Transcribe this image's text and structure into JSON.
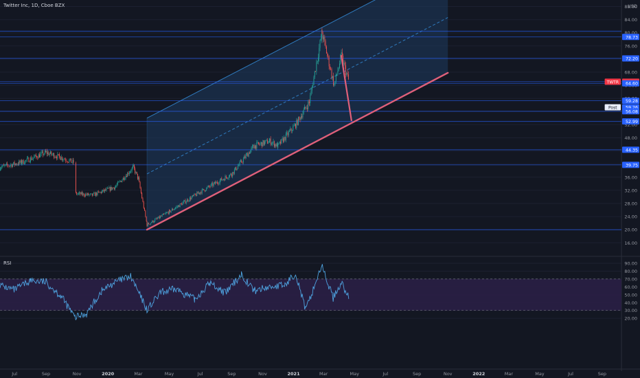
{
  "title": "Twitter Inc, 1D, Cboe BZX",
  "currency": "USD",
  "colors": {
    "background": "#131722",
    "candle_up": "#26a69a",
    "candle_down": "#ef5350",
    "hline": "#2962ff",
    "channel_fill": "#1e3a5f",
    "channel_border": "#2f7bbf",
    "support": "#e0607a",
    "rsi": "#4ea3e0",
    "rsi_band": "#2a1f45",
    "label_blue": "#2962ff",
    "label_red": "#f23645"
  },
  "axis": {
    "price_ticks": [
      "88.00",
      "84.00",
      "80.00",
      "76.00",
      "72.00",
      "68.00",
      "64.00",
      "60.00",
      "56.00",
      "52.00",
      "48.00",
      "44.00",
      "40.00",
      "36.00",
      "32.00",
      "28.00",
      "24.00",
      "20.00",
      "16.00"
    ],
    "rsi_ticks": [
      "90.00",
      "80.00",
      "70.00",
      "60.00",
      "50.00",
      "40.00",
      "30.00",
      "20.00"
    ],
    "time_ticks": [
      "Jul",
      "Sep",
      "Nov",
      "2020",
      "Mar",
      "May",
      "Jul",
      "Sep",
      "Nov",
      "2021",
      "Mar",
      "May",
      "Jul",
      "Sep",
      "Nov",
      "2022",
      "Mar",
      "May",
      "Jul",
      "Sep"
    ]
  },
  "price_labels": [
    {
      "text": "78.73",
      "color": "blue"
    },
    {
      "text": "72.20",
      "color": "blue"
    },
    {
      "text": "65.09",
      "color": "red",
      "prefix": "TWTR"
    },
    {
      "text": "64.60",
      "color": "blue"
    },
    {
      "text": "59.28",
      "color": "blue"
    },
    {
      "text": "59.26",
      "color": "blue",
      "prefix": "Post"
    },
    {
      "text": "56.08",
      "color": "blue"
    },
    {
      "text": "52.99",
      "color": "blue"
    },
    {
      "text": "44.35",
      "color": "blue"
    },
    {
      "text": "39.75",
      "color": "blue"
    }
  ],
  "rsi_label": "RSI",
  "chart_data": {
    "type": "candlestick",
    "title": "Twitter Inc, 1D, Cboe BZX",
    "y_unit": "USD",
    "ylim": [
      16,
      88
    ],
    "horizontal_levels": [
      80.5,
      78.73,
      72.2,
      65.09,
      64.6,
      59.28,
      56.08,
      52.99,
      44.35,
      39.75,
      20.0
    ],
    "regression_channel": {
      "start": "2020-03-18",
      "end": "2021-11-01",
      "lower": [
        20.0,
        67.8
      ],
      "upper": [
        54.0,
        101.5
      ]
    },
    "support_line": {
      "from": [
        "2020-03-18",
        20.0
      ],
      "to": [
        "2021-11-01",
        67.8
      ]
    },
    "projection_line": {
      "from": [
        "2021-04-05",
        73.0
      ],
      "to": [
        "2021-04-25",
        53.3
      ]
    },
    "price_path": [
      [
        "2019-06-01",
        39.0
      ],
      [
        "2019-07-15",
        40.5
      ],
      [
        "2019-09-01",
        43.5
      ],
      [
        "2019-10-01",
        42.0
      ],
      [
        "2019-10-25",
        40.5
      ],
      [
        "2019-10-28",
        31.0
      ],
      [
        "2019-12-01",
        30.5
      ],
      [
        "2020-01-15",
        33.0
      ],
      [
        "2020-02-20",
        39.0
      ],
      [
        "2020-03-01",
        35.5
      ],
      [
        "2020-03-18",
        21.5
      ],
      [
        "2020-05-01",
        25.5
      ],
      [
        "2020-07-01",
        31.5
      ],
      [
        "2020-09-01",
        37.0
      ],
      [
        "2020-10-15",
        45.5
      ],
      [
        "2020-11-15",
        47.0
      ],
      [
        "2020-12-01",
        45.5
      ],
      [
        "2021-01-05",
        52.0
      ],
      [
        "2021-02-01",
        59.0
      ],
      [
        "2021-02-26",
        80.0
      ],
      [
        "2021-03-10",
        72.0
      ],
      [
        "2021-03-22",
        64.0
      ],
      [
        "2021-04-05",
        73.0
      ],
      [
        "2021-04-20",
        65.09
      ]
    ],
    "rsi": {
      "period": 14,
      "ylim": [
        15,
        95
      ],
      "bands": [
        30,
        70
      ],
      "series": [
        [
          "2019-06-01",
          62
        ],
        [
          "2019-07-01",
          56
        ],
        [
          "2019-08-01",
          68
        ],
        [
          "2019-09-01",
          66
        ],
        [
          "2019-10-01",
          48
        ],
        [
          "2019-10-28",
          21
        ],
        [
          "2019-11-20",
          26
        ],
        [
          "2019-12-20",
          55
        ],
        [
          "2020-01-15",
          66
        ],
        [
          "2020-02-15",
          73
        ],
        [
          "2020-03-18",
          31
        ],
        [
          "2020-04-15",
          53
        ],
        [
          "2020-05-15",
          57
        ],
        [
          "2020-06-20",
          44
        ],
        [
          "2020-07-20",
          65
        ],
        [
          "2020-08-20",
          52
        ],
        [
          "2020-09-20",
          76
        ],
        [
          "2020-10-15",
          55
        ],
        [
          "2020-11-15",
          60
        ],
        [
          "2020-12-15",
          62
        ],
        [
          "2021-01-05",
          78
        ],
        [
          "2021-01-25",
          30
        ],
        [
          "2021-02-25",
          87
        ],
        [
          "2021-03-20",
          46
        ],
        [
          "2021-04-05",
          66
        ],
        [
          "2021-04-20",
          45
        ]
      ]
    }
  }
}
